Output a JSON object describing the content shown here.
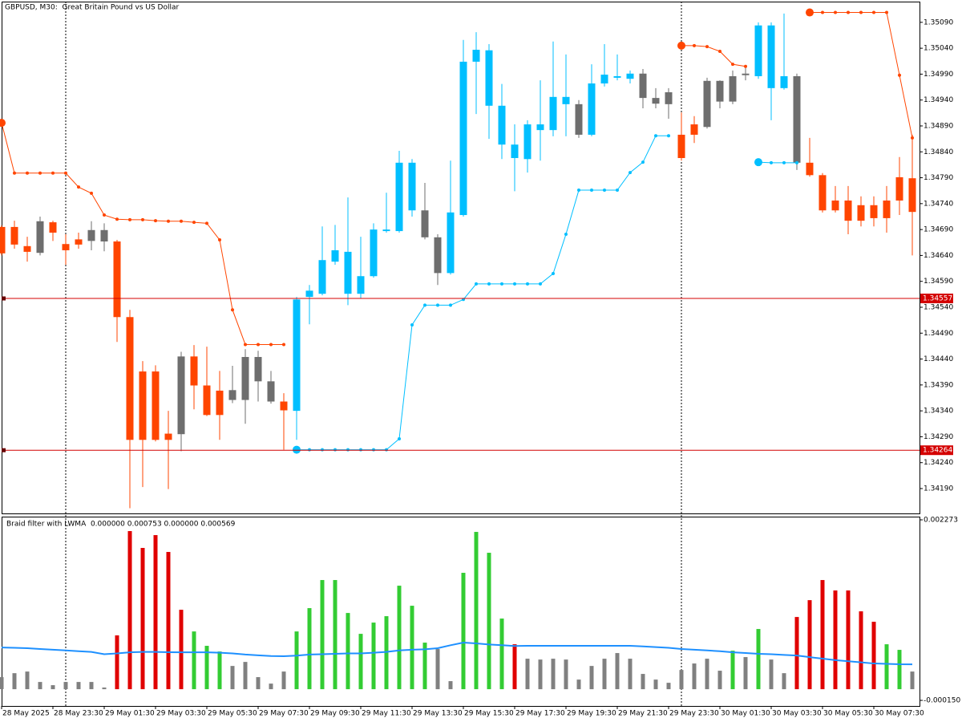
{
  "chart_data": [
    {
      "type": "candlestick",
      "title": "GBPUSD, M30:  Great Britain Pound vs US Dollar",
      "categories": [
        "28 May 2025",
        null,
        null,
        null,
        "28 May 23:30",
        null,
        null,
        null,
        "29 May 01:30",
        null,
        null,
        null,
        "29 May 03:30",
        null,
        null,
        null,
        "29 May 05:30",
        null,
        null,
        null,
        "29 May 07:30",
        null,
        null,
        null,
        "29 May 09:30",
        null,
        null,
        null,
        "29 May 11:30",
        null,
        null,
        null,
        "29 May 13:30",
        null,
        null,
        null,
        "29 May 15:30",
        null,
        null,
        null,
        "29 May 17:30",
        null,
        null,
        null,
        "29 May 19:30",
        null,
        null,
        null,
        "29 May 21:30",
        null,
        null,
        null,
        "29 May 23:30",
        null,
        null,
        null,
        "30 May 01:30",
        null,
        null,
        null,
        "30 May 03:30",
        null,
        null,
        null,
        "30 May 05:30",
        null,
        null,
        null,
        "30 May 07:30",
        null,
        null,
        null
      ],
      "open": [
        1.34695,
        1.34695,
        1.34658,
        1.34645,
        1.34704,
        1.34662,
        1.34671,
        1.34668,
        1.34689,
        1.34667,
        1.34521,
        1.34284,
        1.34416,
        1.34284,
        1.34295,
        1.34445,
        1.34389,
        1.34379,
        1.34361,
        1.34361,
        1.34444,
        1.34397,
        1.34358,
        1.3434,
        1.3456,
        1.34566,
        1.34628,
        1.34647,
        1.34566,
        1.346,
        1.34687,
        1.34687,
        1.34819,
        1.34727,
        1.34675,
        1.34606,
        1.34718,
        1.35014,
        1.35036,
        1.34929,
        1.34854,
        1.34826,
        1.34882,
        1.34882,
        1.34946,
        1.34932,
        1.34873,
        1.34972,
        1.34983,
        1.34981,
        1.34991,
        1.34944,
        1.34932,
        1.34873,
        1.34873,
        1.34888,
        1.34977,
        1.34937,
        1.34988,
        1.34986,
        1.35084,
        1.34963,
        1.34986,
        1.34819,
        1.34795,
        1.34727,
        1.34746,
        1.34707,
        1.34737,
        1.34712,
        1.34746,
        1.34789
      ],
      "high": [
        1.34698,
        1.34707,
        1.34676,
        1.34715,
        1.34707,
        1.34681,
        1.34684,
        1.34706,
        1.34702,
        1.3467,
        1.34535,
        1.34436,
        1.34428,
        1.3434,
        1.34454,
        1.34467,
        1.34464,
        1.34417,
        1.34427,
        1.34459,
        1.34456,
        1.34417,
        1.34374,
        1.3456,
        1.34583,
        1.34696,
        1.34699,
        1.34752,
        1.34676,
        1.34702,
        1.34761,
        1.34842,
        1.34826,
        1.3478,
        1.34681,
        1.34823,
        1.35056,
        1.35071,
        1.35048,
        1.34971,
        1.34893,
        1.34901,
        1.34978,
        1.35053,
        1.35028,
        1.3494,
        1.35009,
        1.35048,
        1.35028,
        1.34997,
        1.35,
        1.34963,
        1.34963,
        1.34916,
        1.34909,
        1.34983,
        1.34978,
        1.34997,
        1.35006,
        1.3509,
        1.3509,
        1.35107,
        1.34991,
        1.34867,
        1.34799,
        1.34774,
        1.34774,
        1.34754,
        1.34754,
        1.34774,
        1.3483,
        1.34873
      ],
      "low": [
        1.3464,
        1.34653,
        1.34628,
        1.3464,
        1.34668,
        1.34622,
        1.34653,
        1.3465,
        1.34648,
        1.34473,
        1.34152,
        1.34193,
        1.34281,
        1.34189,
        1.34262,
        1.34343,
        1.3433,
        1.34284,
        1.34355,
        1.34315,
        1.34358,
        1.34354,
        1.34265,
        1.34284,
        1.34507,
        1.34563,
        1.34622,
        1.34544,
        1.34557,
        1.34597,
        1.34684,
        1.34684,
        1.34715,
        1.34671,
        1.34583,
        1.34603,
        1.34715,
        1.34913,
        1.34865,
        1.34826,
        1.34764,
        1.348,
        1.34823,
        1.3487,
        1.3487,
        1.34867,
        1.3487,
        1.34966,
        1.34978,
        1.34972,
        1.34924,
        1.34924,
        1.34904,
        1.34823,
        1.34857,
        1.34885,
        1.34924,
        1.34932,
        1.34978,
        1.34981,
        1.34901,
        1.3496,
        1.34805,
        1.34792,
        1.34723,
        1.34723,
        1.34681,
        1.34696,
        1.34696,
        1.34684,
        1.34718,
        1.3464
      ],
      "close": [
        1.34644,
        1.34661,
        1.34647,
        1.34706,
        1.34684,
        1.3465,
        1.34661,
        1.34689,
        1.34667,
        1.34521,
        1.34284,
        1.34416,
        1.34284,
        1.34296,
        1.34445,
        1.34389,
        1.34332,
        1.34332,
        1.3438,
        1.34444,
        1.34397,
        1.34358,
        1.34341,
        1.34555,
        1.34572,
        1.34631,
        1.3465,
        1.34566,
        1.346,
        1.3469,
        1.3469,
        1.34819,
        1.34727,
        1.34675,
        1.34606,
        1.34723,
        1.35014,
        1.35037,
        1.34929,
        1.34854,
        1.34828,
        1.34893,
        1.34893,
        1.34946,
        1.34932,
        1.34873,
        1.34972,
        1.34989,
        1.34986,
        1.34991,
        1.34944,
        1.34933,
        1.34955,
        1.34828,
        1.34893,
        1.34977,
        1.34937,
        1.34986,
        1.34991,
        1.35084,
        1.34963,
        1.34986,
        1.34819,
        1.34795,
        1.34727,
        1.34746,
        1.34707,
        1.34737,
        1.34712,
        1.34746,
        1.34791,
        1.34724
      ],
      "colors": [
        "#ff4500",
        "#ff4500",
        "#ff4500",
        "#6e6e6e",
        "#ff4500",
        "#ff4500",
        "#ff4500",
        "#6e6e6e",
        "#6e6e6e",
        "#ff4500",
        "#ff4500",
        "#ff4500",
        "#ff4500",
        "#ff4500",
        "#6e6e6e",
        "#ff4500",
        "#ff4500",
        "#ff4500",
        "#6e6e6e",
        "#6e6e6e",
        "#6e6e6e",
        "#6e6e6e",
        "#ff4500",
        "#00bfff",
        "#00bfff",
        "#00bfff",
        "#00bfff",
        "#00bfff",
        "#00bfff",
        "#00bfff",
        "#00bfff",
        "#00bfff",
        "#00bfff",
        "#6e6e6e",
        "#6e6e6e",
        "#00bfff",
        "#00bfff",
        "#00bfff",
        "#00bfff",
        "#00bfff",
        "#00bfff",
        "#00bfff",
        "#00bfff",
        "#00bfff",
        "#00bfff",
        "#6e6e6e",
        "#00bfff",
        "#00bfff",
        "#00bfff",
        "#00bfff",
        "#6e6e6e",
        "#6e6e6e",
        "#6e6e6e",
        "#ff4500",
        "#ff4500",
        "#6e6e6e",
        "#6e6e6e",
        "#6e6e6e",
        "#6e6e6e",
        "#00bfff",
        "#00bfff",
        "#00bfff",
        "#6e6e6e",
        "#ff4500",
        "#ff4500",
        "#ff4500",
        "#ff4500",
        "#ff4500",
        "#ff4500",
        "#ff4500",
        "#ff4500",
        "#ff4500"
      ],
      "series": [
        {
          "color": "#ff4500",
          "marker": true,
          "values": [
            1.34896,
            1.34799,
            1.34799,
            1.34799,
            1.34799,
            1.34799,
            1.34772,
            1.3476,
            1.34718,
            1.3471,
            1.34709,
            1.34709,
            1.34707,
            1.34706,
            1.34706,
            1.34704,
            1.34702,
            1.3467,
            1.34535,
            1.34468,
            1.34468,
            1.34468,
            1.34468,
            null,
            null,
            null,
            null,
            null,
            null,
            null,
            null,
            null,
            null,
            null,
            null,
            null,
            null,
            null,
            null,
            null,
            null,
            null,
            null,
            null,
            null,
            null,
            null,
            null,
            null,
            null,
            null,
            null,
            null,
            1.35045,
            1.35045,
            1.35043,
            1.35034,
            1.35009,
            1.35005,
            null,
            null,
            null,
            null,
            1.35109,
            1.35109,
            1.35109,
            1.35109,
            1.35109,
            1.35109,
            1.35109,
            1.34988,
            1.34867
          ]
        },
        {
          "color": "#00bfff",
          "marker": true,
          "values": [
            null,
            null,
            null,
            null,
            null,
            null,
            null,
            null,
            null,
            null,
            null,
            null,
            null,
            null,
            null,
            null,
            null,
            null,
            null,
            null,
            null,
            null,
            null,
            1.34265,
            1.34265,
            1.34265,
            1.34265,
            1.34265,
            1.34265,
            1.34265,
            1.34265,
            1.34286,
            1.34506,
            1.34544,
            1.34544,
            1.34544,
            1.34555,
            1.34585,
            1.34585,
            1.34585,
            1.34585,
            1.34585,
            1.34585,
            1.34605,
            1.34681,
            1.34766,
            1.34766,
            1.34766,
            1.34766,
            1.348,
            1.3482,
            1.34871,
            1.34871,
            null,
            null,
            null,
            null,
            null,
            null,
            1.3482,
            1.34819,
            1.34819,
            1.34819,
            null,
            null,
            null,
            null,
            null,
            null,
            null,
            null,
            null
          ]
        }
      ],
      "hlines": [
        {
          "value": 1.34557,
          "color": "#d40000"
        },
        {
          "value": 1.34264,
          "color": "#d40000"
        }
      ],
      "ylim": [
        1.34142,
        1.3513
      ],
      "yticks": [
        {
          "value": 1.3509,
          "label": "1.35090"
        },
        {
          "value": 1.3504,
          "label": "1.35040"
        },
        {
          "value": 1.3499,
          "label": "1.34990"
        },
        {
          "value": 1.3494,
          "label": "1.34940"
        },
        {
          "value": 1.3489,
          "label": "1.34890"
        },
        {
          "value": 1.3484,
          "label": "1.34840"
        },
        {
          "value": 1.3479,
          "label": "1.34790"
        },
        {
          "value": 1.3474,
          "label": "1.34740"
        },
        {
          "value": 1.3469,
          "label": "1.34690"
        },
        {
          "value": 1.3464,
          "label": "1.34640"
        },
        {
          "value": 1.3459,
          "label": "1.34590"
        },
        {
          "value": 1.3454,
          "label": "1.34540"
        },
        {
          "value": 1.3449,
          "label": "1.34490"
        },
        {
          "value": 1.3444,
          "label": "1.34440"
        },
        {
          "value": 1.3439,
          "label": "1.34390"
        },
        {
          "value": 1.3434,
          "label": "1.34340"
        },
        {
          "value": 1.3429,
          "label": "1.34290"
        },
        {
          "value": 1.3424,
          "label": "1.34240"
        },
        {
          "value": 1.3419,
          "label": "1.34190"
        }
      ],
      "grid": false
    },
    {
      "type": "bar",
      "title": "Braid filter with LWMA  0.000000 0.000753 0.000000 0.000569",
      "values": [
        0.000162,
        0.000215,
        0.000237,
        9.7e-05,
        5.4e-05,
        9.7e-05,
        9.7e-05,
        9.7e-05,
        2.2e-05,
        0.000722,
        0.002122,
        0.001896,
        0.002068,
        0.001842,
        0.001066,
        0.000775,
        0.000582,
        0.000506,
        0.000312,
        0.000366,
        0.000162,
        7.5e-05,
        0.000237,
        0.000775,
        0.001088,
        0.001465,
        0.001465,
        0.001023,
        0.000743,
        0.000894,
        0.00098,
        0.001389,
        0.00112,
        0.000625,
        0.000539,
        0.000108,
        0.001562,
        0.002111,
        0.001831,
        0.000948,
        0.000603,
        0.000409,
        0.000398,
        0.000409,
        0.000398,
        0.000129,
        0.000312,
        0.000409,
        0.000485,
        0.000409,
        0.000205,
        0.000129,
        8.6e-05,
        0.000258,
        0.000345,
        0.000409,
        0.000248,
        0.000517,
        0.000431,
        0.000808,
        0.000398,
        0.000215,
        0.000969,
        0.001195,
        0.001465,
        0.001325,
        0.001325,
        0.001045,
        0.000905,
        0.000603,
        0.000528,
        0.000237
      ],
      "colors": [
        "#808080",
        "#808080",
        "#808080",
        "#808080",
        "#808080",
        "#808080",
        "#808080",
        "#808080",
        "#808080",
        "#e00000",
        "#e00000",
        "#e00000",
        "#e00000",
        "#e00000",
        "#e00000",
        "#33cc33",
        "#33cc33",
        "#33cc33",
        "#808080",
        "#808080",
        "#808080",
        "#808080",
        "#808080",
        "#33cc33",
        "#33cc33",
        "#33cc33",
        "#33cc33",
        "#33cc33",
        "#33cc33",
        "#33cc33",
        "#33cc33",
        "#33cc33",
        "#33cc33",
        "#33cc33",
        "#808080",
        "#808080",
        "#33cc33",
        "#33cc33",
        "#33cc33",
        "#33cc33",
        "#e00000",
        "#808080",
        "#808080",
        "#808080",
        "#808080",
        "#808080",
        "#808080",
        "#808080",
        "#808080",
        "#808080",
        "#808080",
        "#808080",
        "#808080",
        "#808080",
        "#808080",
        "#808080",
        "#808080",
        "#33cc33",
        "#808080",
        "#33cc33",
        "#808080",
        "#808080",
        "#e00000",
        "#e00000",
        "#e00000",
        "#e00000",
        "#e00000",
        "#e00000",
        "#e00000",
        "#33cc33",
        "#33cc33",
        "#808080"
      ],
      "series": [
        {
          "color": "#1e90ff",
          "marker": false,
          "values": [
            0.00056,
            0.000556,
            0.00055,
            0.00054,
            0.00053,
            0.00052,
            0.00051,
            0.0005,
            0.00047,
            0.00048,
            0.000495,
            0.0005,
            0.0005,
            0.000497,
            0.000495,
            0.000495,
            0.000495,
            0.00049,
            0.00048,
            0.000465,
            0.000455,
            0.000445,
            0.000442,
            0.00045,
            0.000465,
            0.00047,
            0.000475,
            0.00048,
            0.00048,
            0.00049,
            0.0005,
            0.00052,
            0.00053,
            0.000535,
            0.00055,
            0.00059,
            0.000625,
            0.000615,
            0.0006,
            0.00059,
            0.00058,
            0.000582,
            0.000582,
            0.000582,
            0.000582,
            0.000582,
            0.000582,
            0.000582,
            0.000582,
            0.000582,
            0.000575,
            0.000565,
            0.000555,
            0.00054,
            0.00053,
            0.00052,
            0.00051,
            0.000495,
            0.000485,
            0.000475,
            0.00047,
            0.00046,
            0.000452,
            0.00043,
            0.00041,
            0.00039,
            0.000375,
            0.00036,
            0.000345,
            0.00034,
            0.000335,
            0.000334
          ]
        }
      ],
      "ylim": [
        -0.000225,
        0.002316
      ],
      "yticks": [
        0.002273,
        {
          "value": -0.00015,
          "label": "-0.000150"
        }
      ],
      "grid": false
    }
  ]
}
